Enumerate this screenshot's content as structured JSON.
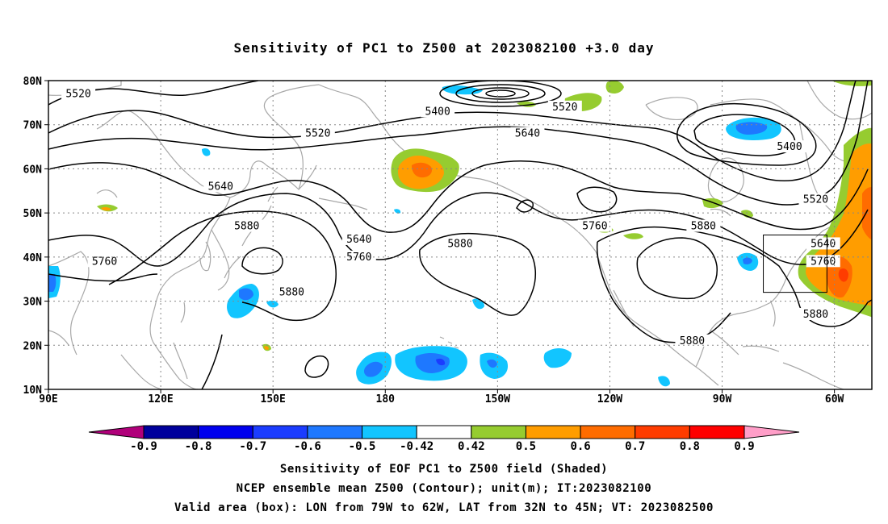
{
  "title": "Sensitivity of PC1 to Z500 at 2023082100 +3.0 day",
  "map": {
    "lon_range": [
      90,
      310
    ],
    "lat_range": [
      10,
      80
    ],
    "grid": true,
    "lat_ticks": [
      {
        "value": 80,
        "label": "80N"
      },
      {
        "value": 70,
        "label": "70N"
      },
      {
        "value": 60,
        "label": "60N"
      },
      {
        "value": 50,
        "label": "50N"
      },
      {
        "value": 40,
        "label": "40N"
      },
      {
        "value": 30,
        "label": "30N"
      },
      {
        "value": 20,
        "label": "20N"
      },
      {
        "value": 10,
        "label": "10N"
      }
    ],
    "lon_ticks": [
      {
        "value": 90,
        "label": "90E"
      },
      {
        "value": 120,
        "label": "120E"
      },
      {
        "value": 150,
        "label": "150E"
      },
      {
        "value": 180,
        "label": "180"
      },
      {
        "value": 210,
        "label": "150W"
      },
      {
        "value": 240,
        "label": "120W"
      },
      {
        "value": 270,
        "label": "90W"
      },
      {
        "value": 300,
        "label": "60W"
      }
    ],
    "valid_box": {
      "lon": [
        281,
        298
      ],
      "lat": [
        32,
        45
      ]
    },
    "contour_labels": [
      {
        "text": "5520",
        "lon": 98,
        "lat": 77
      },
      {
        "text": "5400",
        "lon": 194,
        "lat": 73
      },
      {
        "text": "5520",
        "lon": 228,
        "lat": 74
      },
      {
        "text": "5520",
        "lon": 162,
        "lat": 68
      },
      {
        "text": "5640",
        "lon": 218,
        "lat": 68
      },
      {
        "text": "5400",
        "lon": 288,
        "lat": 65
      },
      {
        "text": "5640",
        "lon": 136,
        "lat": 56
      },
      {
        "text": "5520",
        "lon": 295,
        "lat": 53
      },
      {
        "text": "5880",
        "lon": 143,
        "lat": 47
      },
      {
        "text": "5760",
        "lon": 236,
        "lat": 47
      },
      {
        "text": "5880",
        "lon": 265,
        "lat": 47
      },
      {
        "text": "5640",
        "lon": 173,
        "lat": 44
      },
      {
        "text": "5640",
        "lon": 297,
        "lat": 43
      },
      {
        "text": "5880",
        "lon": 200,
        "lat": 43
      },
      {
        "text": "5760",
        "lon": 173,
        "lat": 40
      },
      {
        "text": "5760",
        "lon": 105,
        "lat": 39
      },
      {
        "text": "5760",
        "lon": 297,
        "lat": 39
      },
      {
        "text": "5880",
        "lon": 155,
        "lat": 32
      },
      {
        "text": "5880",
        "lon": 295,
        "lat": 27
      },
      {
        "text": "5880",
        "lon": 262,
        "lat": 21
      }
    ]
  },
  "colorbar": {
    "colors": [
      "#b0007a",
      "#00009c",
      "#0000ee",
      "#1b3cff",
      "#1e78ff",
      "#12c5ff",
      "#ffffff",
      "#96cc30",
      "#ff9d00",
      "#ff6c00",
      "#ff3c00",
      "#ff0000",
      "#ff9ec8"
    ],
    "labels": [
      "-0.9",
      "-0.8",
      "-0.7",
      "-0.6",
      "-0.5",
      "-0.42",
      "0.42",
      "0.5",
      "0.6",
      "0.7",
      "0.8",
      "0.9"
    ]
  },
  "captions": {
    "line1": "Sensitivity of EOF PC1 to Z500 field (Shaded)",
    "line2": "NCEP ensemble mean Z500 (Contour); unit(m); IT:2023082100",
    "line3": "Valid area (box): LON from 79W to 62W, LAT from 32N to 45N; VT: 2023082500"
  }
}
